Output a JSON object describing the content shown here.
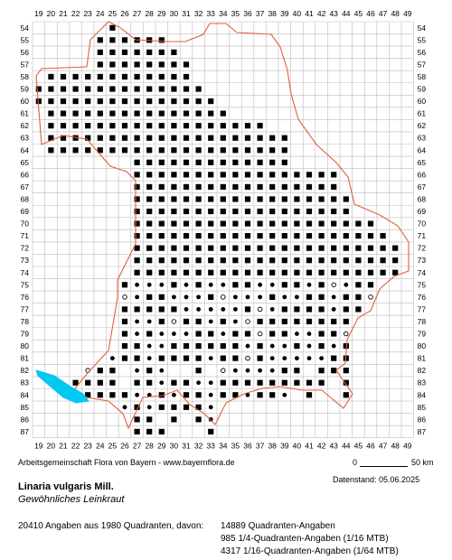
{
  "grid": {
    "columns": [
      "19",
      "20",
      "21",
      "22",
      "23",
      "24",
      "25",
      "26",
      "27",
      "28",
      "29",
      "30",
      "31",
      "32",
      "33",
      "34",
      "35",
      "36",
      "37",
      "38",
      "39",
      "40",
      "41",
      "42",
      "43",
      "44",
      "45",
      "46",
      "47",
      "48",
      "49"
    ],
    "rows": [
      "54",
      "55",
      "56",
      "57",
      "58",
      "59",
      "60",
      "61",
      "62",
      "63",
      "64",
      "65",
      "66",
      "67",
      "68",
      "69",
      "70",
      "71",
      "72",
      "73",
      "74",
      "75",
      "76",
      "77",
      "78",
      "79",
      "80",
      "81",
      "82",
      "83",
      "84",
      "85",
      "86",
      "87"
    ]
  },
  "colors": {
    "grid_line": "#bdbdbd",
    "occurrence_dot": "#000000",
    "border": "#e0603a",
    "water": "#00c8f0"
  },
  "map": {
    "marker_legend": {
      "filled_square": "Quadranten-Angaben",
      "filled_circle": "1/4-Quadranten-Angaben (1/16 MTB)",
      "open_circle": "1/16-Quadranten-Angaben (1/64 MTB)"
    }
  },
  "footer": {
    "credit": "Arbeitsgemeinschaft Flora von Bayern - www.bayernflora.de",
    "scale_start": "0",
    "scale_end": "50 km",
    "date": "Datenstand: 05.06.2025",
    "species_latin": "Linaria vulgaris Mill.",
    "species_common": "Gewöhnliches Leinkraut",
    "summary": "20410 Angaben aus 1980 Quadranten, davon:",
    "count_quadrant": "14889 Quadranten-Angaben",
    "count_quarter": "985 1/4-Quadranten-Angaben (1/16 MTB)",
    "count_sixteenth": "4317 1/16-Quadranten-Angaben (1/64 MTB)"
  }
}
